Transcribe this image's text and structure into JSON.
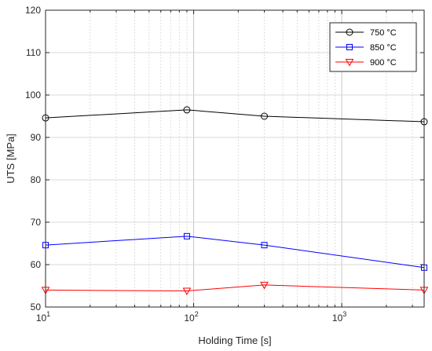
{
  "chart_data": {
    "type": "line",
    "title": "",
    "xlabel": "Holding Time [s]",
    "ylabel": "UTS [MPa]",
    "xscale": "log",
    "xlim": [
      10,
      3600
    ],
    "ylim": [
      50,
      120
    ],
    "x_ticks": [
      {
        "value": 10,
        "base": "10",
        "exp": "1"
      },
      {
        "value": 100,
        "base": "10",
        "exp": "2"
      },
      {
        "value": 1000,
        "base": "10",
        "exp": "3"
      }
    ],
    "y_ticks": [
      50,
      60,
      70,
      80,
      90,
      100,
      110,
      120
    ],
    "grid": true,
    "legend_position": "top-right",
    "series": [
      {
        "name": "750 °C",
        "marker": "circle",
        "color": "#000000",
        "x": [
          10,
          90,
          300,
          3600
        ],
        "y": [
          94.6,
          96.5,
          95.0,
          93.7
        ]
      },
      {
        "name": "850 °C",
        "marker": "square",
        "color": "#0000ff",
        "x": [
          10,
          90,
          300,
          3600
        ],
        "y": [
          64.6,
          66.7,
          64.6,
          59.3
        ]
      },
      {
        "name": "900 °C",
        "marker": "triangle-down",
        "color": "#ff0000",
        "x": [
          10,
          90,
          300,
          3600
        ],
        "y": [
          54.0,
          53.8,
          55.2,
          54.0
        ]
      }
    ]
  }
}
